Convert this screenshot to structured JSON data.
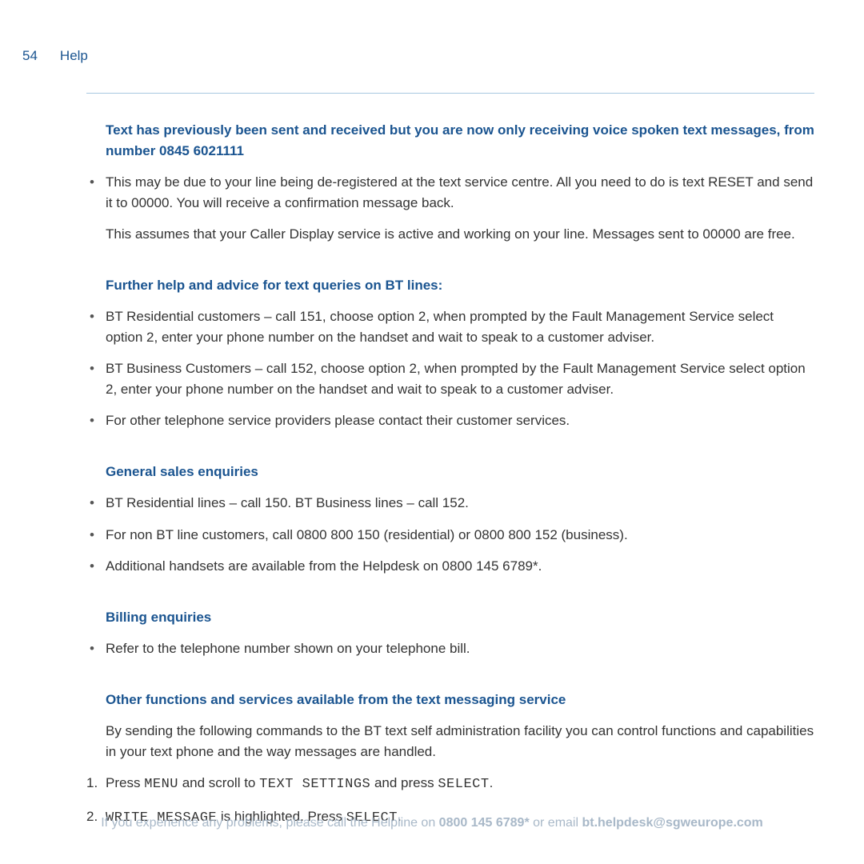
{
  "colors": {
    "brand_blue": "#1a5490",
    "body_text": "#333333",
    "divider": "#a8c8e0",
    "footer_gray": "#a8b8c8",
    "background": "#ffffff"
  },
  "typography": {
    "body_fontsize_pt": 13,
    "heading_fontsize_pt": 13,
    "line_height": 1.5,
    "mono_font": "Courier New"
  },
  "header": {
    "page_number": "54",
    "section_name": "Help"
  },
  "sections": [
    {
      "heading": "Text has previously been sent and received but you are now only receiving voice spoken text messages, from number 0845 6021111",
      "bullets": [
        "This may be due to your line being de-registered at the text service centre. All you need to do is text RESET and send it to 00000. You will receive a confirmation message back."
      ],
      "sub_paragraph": "This assumes that your Caller Display service is active and working on your line. Messages sent to 00000 are free."
    },
    {
      "heading": "Further help and advice for text queries on BT lines:",
      "bullets": [
        "BT Residential customers – call 151, choose option 2, when prompted by the Fault Management Service select option 2, enter your phone number on the handset and wait to speak to a customer adviser.",
        "BT Business Customers – call 152, choose option 2, when prompted by the Fault Management Service select option 2, enter your phone number on the handset and wait to speak to a customer adviser.",
        "For other telephone service providers please contact their customer services."
      ]
    },
    {
      "heading": "General sales enquiries",
      "bullets": [
        "BT Residential lines – call 150. BT Business lines – call 152.",
        "For non BT line customers, call 0800 800 150 (residential) or 0800 800 152 (business).",
        "Additional handsets are available from the Helpdesk on 0800 145 6789*."
      ]
    },
    {
      "heading": "Billing enquiries",
      "bullets": [
        "Refer to the telephone number shown on your telephone bill."
      ]
    },
    {
      "heading": "Other functions and services available from the text messaging service",
      "sub_paragraph": "By sending the following commands to the BT text self administration facility you can control functions and capabilities in your text phone and the way messages are handled."
    }
  ],
  "ordered_steps": {
    "step1_prefix": "1.",
    "step1_a": "Press ",
    "step1_mono_a": "MENU",
    "step1_b": " and scroll  to ",
    "step1_mono_b": "TEXT SETTINGS",
    "step1_c": " and press ",
    "step1_mono_c": "SELECT",
    "step1_d": ".",
    "step2_prefix": "2.",
    "step2_mono_a": "WRITE MESSAGE",
    "step2_a": " is highlighted. Press ",
    "step2_mono_b": "SELECT",
    "step2_b": "."
  },
  "footer": {
    "text_a": "If you experience any problems, please call the Helpline on ",
    "bold_a": "0800 145 6789*",
    "text_b": " or email ",
    "bold_b": "bt.helpdesk@sgweurope.com"
  }
}
